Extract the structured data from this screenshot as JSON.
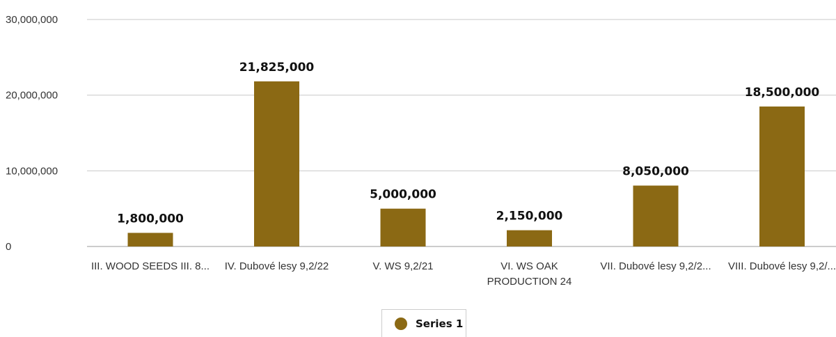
{
  "chart_data": {
    "type": "bar",
    "categories": [
      "III. WOOD SEEDS III. 8...",
      "IV. Dubové lesy 9,2/22",
      "V. WS 9,2/21",
      "VI. WS OAK PRODUCTION 24",
      "VII. Dubové lesy 9,2/2...",
      "VIII. Dubové lesy 9,2/..."
    ],
    "series": [
      {
        "name": "Series 1",
        "values": [
          1800000,
          21825000,
          5000000,
          2150000,
          8050000,
          18500000
        ],
        "color": "#8B6914"
      }
    ],
    "data_labels": [
      "1,800,000",
      "21,825,000",
      "5,000,000",
      "2,150,000",
      "8,050,000",
      "18,500,000"
    ],
    "yticks": [
      0,
      10000000,
      20000000,
      30000000
    ],
    "ytick_labels": [
      "0",
      "10,000,000",
      "20,000,000",
      "30,000,000"
    ],
    "ylim": [
      0,
      30000000
    ],
    "grid": true,
    "legend_position": "bottom"
  }
}
